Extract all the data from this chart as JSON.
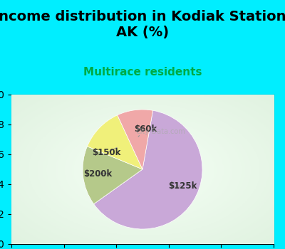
{
  "title": "Income distribution in Kodiak Station,\nAK (%)",
  "subtitle": "Multirace residents",
  "title_color": "#000000",
  "subtitle_color": "#00aa44",
  "slices": [
    {
      "label": "$125k",
      "value": 58,
      "color": "#c9a8d8"
    },
    {
      "label": "$200k",
      "value": 15,
      "color": "#b5c98a"
    },
    {
      "label": "$150k",
      "value": 11,
      "color": "#f0f07a"
    },
    {
      "label": "$60k",
      "value": 9,
      "color": "#f0a8a8"
    }
  ],
  "bg_outer": "#00eeff",
  "bg_inner": "#e8f5e8",
  "watermark": "City-Data.com",
  "label_fontsize": 8.5,
  "title_fontsize": 14,
  "subtitle_fontsize": 11
}
